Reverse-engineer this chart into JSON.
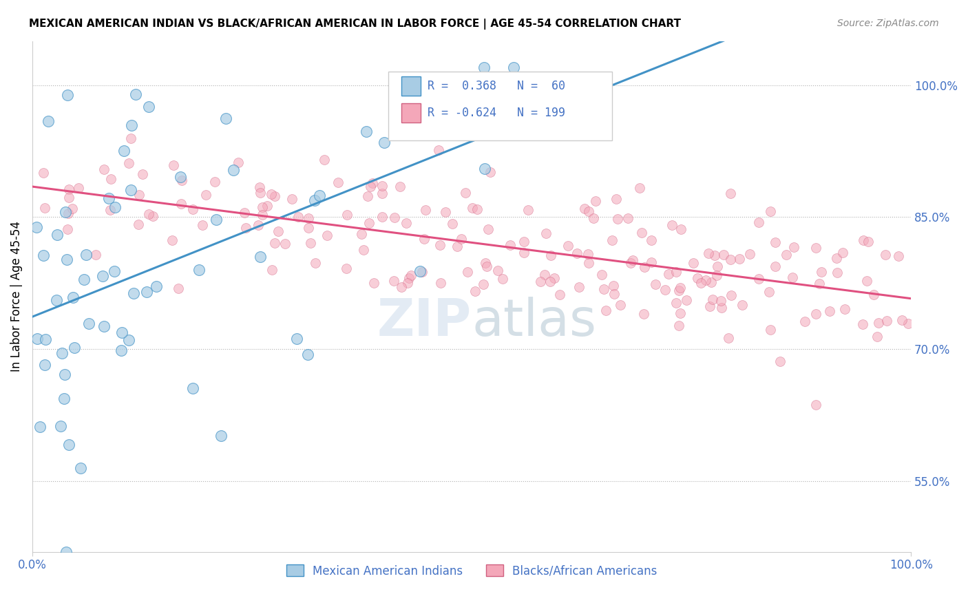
{
  "title": "MEXICAN AMERICAN INDIAN VS BLACK/AFRICAN AMERICAN IN LABOR FORCE | AGE 45-54 CORRELATION CHART",
  "source": "Source: ZipAtlas.com",
  "ylabel": "In Labor Force | Age 45-54",
  "legend_label1": "Mexican American Indians",
  "legend_label2": "Blacks/African Americans",
  "R1": 0.368,
  "N1": 60,
  "R2": -0.624,
  "N2": 199,
  "color_blue": "#a8cce4",
  "color_pink": "#f4a7b9",
  "color_blue_line": "#4292c6",
  "color_pink_line": "#e05080",
  "right_yticks": [
    55.0,
    70.0,
    85.0,
    100.0
  ],
  "xlim": [
    0.0,
    1.0
  ],
  "ylim": [
    0.47,
    1.05
  ]
}
